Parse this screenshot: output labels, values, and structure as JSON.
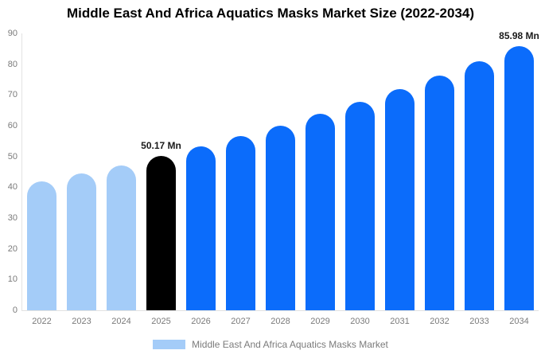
{
  "chart_data": {
    "type": "bar",
    "title": "Middle East And Africa Aquatics Masks Market Size (2022-2034)",
    "categories": [
      "2022",
      "2023",
      "2024",
      "2025",
      "2026",
      "2027",
      "2028",
      "2029",
      "2030",
      "2031",
      "2032",
      "2033",
      "2034"
    ],
    "values": [
      41.9,
      44.5,
      47.2,
      50.17,
      53.3,
      56.6,
      60.1,
      63.8,
      67.7,
      71.9,
      76.3,
      81.0,
      85.98
    ],
    "unit": "Mn",
    "xlabel": "",
    "ylabel": "",
    "ylim": [
      0,
      90
    ],
    "yticks": [
      0,
      10,
      20,
      30,
      40,
      50,
      60,
      70,
      80,
      90
    ],
    "grid": false,
    "legend_position": "bottom",
    "legend_label": "Middle East And Africa Aquatics Masks Market",
    "annotations": [
      {
        "category": "2025",
        "text": "50.17 Mn"
      },
      {
        "category": "2034",
        "text": "85.98 Mn"
      }
    ],
    "colors": {
      "historical_bar": "#a4ccf8",
      "base_year_bar": "#000000",
      "forecast_bar": "#0b6cfb",
      "legend_swatch": "#a4ccf8",
      "axis_line": "#e2e2e2",
      "tick_text": "#7a7a7a",
      "annotation_text": "#1a1a1a"
    },
    "bar_color_keys": [
      "historical_bar",
      "historical_bar",
      "historical_bar",
      "base_year_bar",
      "forecast_bar",
      "forecast_bar",
      "forecast_bar",
      "forecast_bar",
      "forecast_bar",
      "forecast_bar",
      "forecast_bar",
      "forecast_bar",
      "forecast_bar"
    ]
  }
}
